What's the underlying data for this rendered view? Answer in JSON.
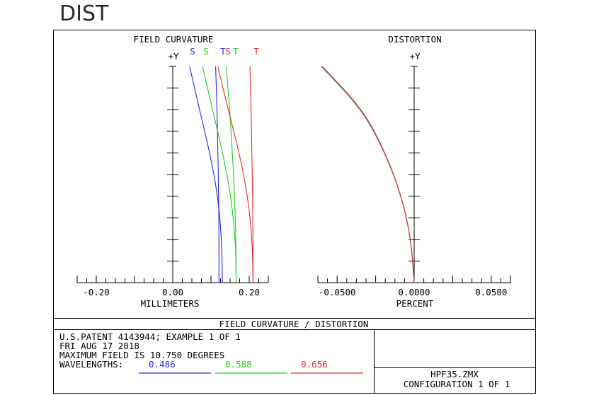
{
  "window_title": "DIST",
  "chart_data": [
    {
      "type": "line",
      "title": "FIELD CURVATURE",
      "xlabel": "MILLIMETERS",
      "ylabel": "+Y",
      "xlim": [
        -0.25,
        0.25
      ],
      "ylim": [
        0,
        1
      ],
      "x_ticks": [
        "-0.20",
        "0.00",
        "0.20"
      ],
      "series_legend": [
        {
          "label": "S",
          "color": "#2a2ae6"
        },
        {
          "label": "S",
          "color": "#22cc22"
        },
        {
          "label": "T",
          "color": "#2a2ae6"
        },
        {
          "label": "S",
          "color": "#e62a2a"
        },
        {
          "label": "T",
          "color": "#22cc22"
        },
        {
          "label": "T",
          "color": "#e62a2a"
        }
      ],
      "series": [
        {
          "color": "#2a2ae6",
          "x": [
            0.13,
            0.128,
            0.118,
            0.097,
            0.07,
            0.044
          ],
          "y": [
            0,
            0.2,
            0.4,
            0.6,
            0.8,
            1.0
          ]
        },
        {
          "color": "#2a2ae6",
          "x": [
            0.121,
            0.121,
            0.12,
            0.118,
            0.116,
            0.112
          ],
          "y": [
            0,
            0.2,
            0.4,
            0.6,
            0.8,
            1.0
          ]
        },
        {
          "color": "#22cc22",
          "x": [
            0.166,
            0.164,
            0.152,
            0.131,
            0.104,
            0.078
          ],
          "y": [
            0,
            0.2,
            0.4,
            0.6,
            0.8,
            1.0
          ]
        },
        {
          "color": "#22cc22",
          "x": [
            0.166,
            0.165,
            0.162,
            0.156,
            0.149,
            0.14
          ],
          "y": [
            0,
            0.2,
            0.4,
            0.6,
            0.8,
            1.0
          ]
        },
        {
          "color": "#e62a2a",
          "x": [
            0.21,
            0.208,
            0.196,
            0.174,
            0.145,
            0.118
          ],
          "y": [
            0,
            0.2,
            0.4,
            0.6,
            0.8,
            1.0
          ]
        },
        {
          "color": "#e62a2a",
          "x": [
            0.21,
            0.21,
            0.209,
            0.207,
            0.205,
            0.202
          ],
          "y": [
            0,
            0.2,
            0.4,
            0.6,
            0.8,
            1.0
          ]
        }
      ]
    },
    {
      "type": "line",
      "title": "DISTORTION",
      "xlabel": "PERCENT",
      "ylabel": "+Y",
      "xlim": [
        -0.05,
        0.05
      ],
      "ylim": [
        0,
        1
      ],
      "x_ticks": [
        "-0.0500",
        "0.0000",
        "0.0500"
      ],
      "series": [
        {
          "color": "#2a2ae6",
          "x": [
            0,
            -0.0016,
            -0.0066,
            -0.0151,
            -0.027,
            -0.0482
          ],
          "y": [
            0,
            0.2,
            0.4,
            0.6,
            0.8,
            1.0
          ]
        },
        {
          "color": "#22cc22",
          "x": [
            0,
            -0.0016,
            -0.0066,
            -0.015,
            -0.0268,
            -0.048
          ],
          "y": [
            0,
            0.2,
            0.4,
            0.6,
            0.8,
            1.0
          ]
        },
        {
          "color": "#e62a2a",
          "x": [
            0,
            -0.0016,
            -0.0065,
            -0.0149,
            -0.0266,
            -0.0477
          ],
          "y": [
            0,
            0.2,
            0.4,
            0.6,
            0.8,
            1.0
          ]
        }
      ]
    }
  ],
  "footer": {
    "title": "FIELD CURVATURE / DISTORTION",
    "lines": [
      "U.S.PATENT 4143944; EXAMPLE 1 OF 1",
      "FRI AUG 17 2018",
      "MAXIMUM FIELD IS 10.750 DEGREES"
    ],
    "wavelengths_label": "WAVELENGTHS:",
    "wavelengths": [
      {
        "value": "0.486",
        "color": "#2a2ae6"
      },
      {
        "value": "0.588",
        "color": "#22cc22"
      },
      {
        "value": "0.656",
        "color": "#e62a2a"
      }
    ],
    "file": "HPF35.ZMX",
    "configuration": "CONFIGURATION 1 OF 1"
  }
}
